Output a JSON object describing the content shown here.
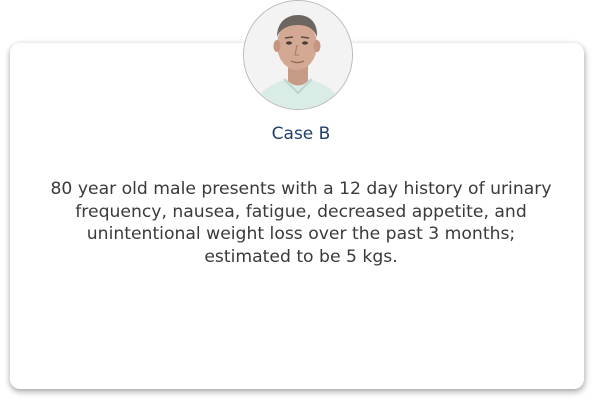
{
  "case": {
    "title": "Case B",
    "description": "80 year old male presents with a 12 day history of urinary frequency, nausea, fatigue, decreased appetite, and unintentional weight loss over the past 3 months; estimated to be 5 kgs."
  },
  "colors": {
    "title": "#1f3f6e",
    "text": "#3a3a3a",
    "card_bg": "#ffffff",
    "avatar_bg": "#f2f2f2"
  }
}
